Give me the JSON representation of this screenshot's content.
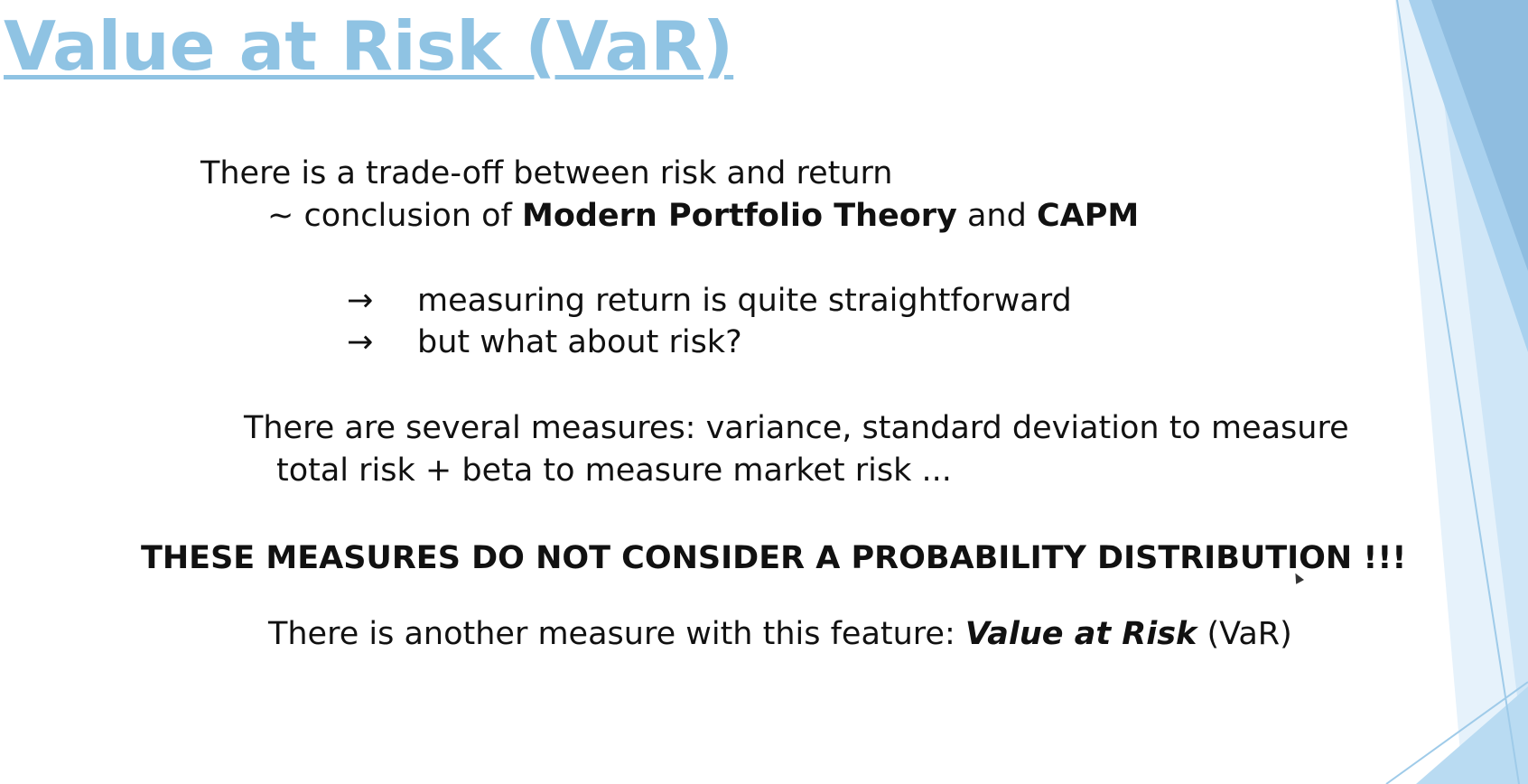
{
  "theme": {
    "title_color": "#8fc3e3",
    "text_color": "#111111",
    "accent_dark": "#8fbde0",
    "accent_mid": "#a9d1ee",
    "accent_light": "#cfe6f7",
    "accent_faint": "#e6f2fb"
  },
  "slide": {
    "title": "Value at Risk (VaR)",
    "line1": "There is a trade-off between risk and return",
    "line2": {
      "prefix": "~ conclusion of ",
      "term1": "Modern Portfolio Theory",
      "middle": " and ",
      "term2": "CAPM"
    },
    "bullets": [
      {
        "arrow": "→",
        "text": "measuring return is quite straightforward"
      },
      {
        "arrow": "→",
        "text": "but what about risk?"
      }
    ],
    "measures_line1": "There are several measures: variance, standard deviation to measure",
    "measures_line2": "total risk  + beta to measure market risk ...",
    "emphasis": "THESE MEASURES DO NOT CONSIDER A PROBABILITY DISTRIBUTION !!!",
    "final": {
      "prefix": "There is another measure with this feature: ",
      "term": "Value at Risk",
      "suffix": " (VaR)"
    }
  }
}
